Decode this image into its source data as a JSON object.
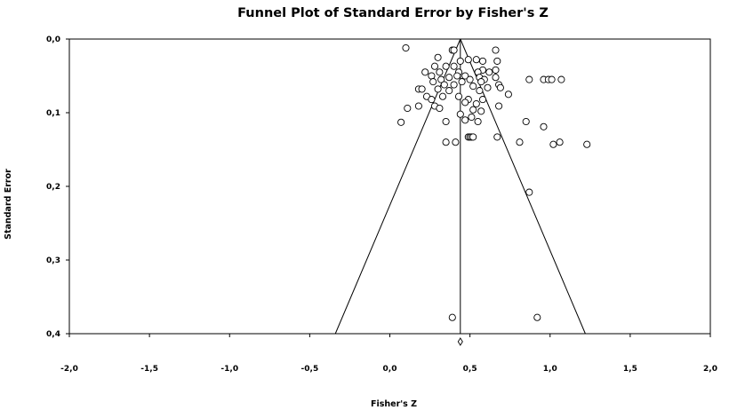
{
  "chart_data": {
    "type": "scatter",
    "title": "Funnel Plot of Standard Error by Fisher's Z",
    "xlabel": "Fisher's Z",
    "ylabel": "Standard Error",
    "xlim": [
      -2.0,
      2.0
    ],
    "ylim": [
      0.0,
      0.4
    ],
    "y_axis_inverted": true,
    "grid": false,
    "legend": "none",
    "x_ticks": [
      "-2,0",
      "-1,5",
      "-1,0",
      "-0,5",
      "0,0",
      "0,5",
      "1,0",
      "1,5",
      "2,0"
    ],
    "x_tick_values": [
      -2.0,
      -1.5,
      -1.0,
      -0.5,
      0.0,
      0.5,
      1.0,
      1.5,
      2.0
    ],
    "y_ticks": [
      "0,0",
      "0,1",
      "0,2",
      "0,3",
      "0,4"
    ],
    "y_tick_values": [
      0.0,
      0.1,
      0.2,
      0.3,
      0.4
    ],
    "combined_effect": 0.44,
    "funnel": {
      "apex": [
        0.44,
        0.0
      ],
      "base_left": [
        -0.34,
        0.4
      ],
      "base_right": [
        1.22,
        0.4
      ]
    },
    "combined_marker": {
      "x": 0.44,
      "symbol": "diamond"
    },
    "points": [
      [
        0.1,
        0.012
      ],
      [
        0.39,
        0.015
      ],
      [
        0.4,
        0.015
      ],
      [
        0.66,
        0.015
      ],
      [
        0.3,
        0.025
      ],
      [
        0.49,
        0.028
      ],
      [
        0.54,
        0.028
      ],
      [
        0.44,
        0.03
      ],
      [
        0.58,
        0.03
      ],
      [
        0.67,
        0.03
      ],
      [
        0.28,
        0.037
      ],
      [
        0.35,
        0.037
      ],
      [
        0.4,
        0.037
      ],
      [
        0.58,
        0.042
      ],
      [
        0.66,
        0.042
      ],
      [
        0.22,
        0.045
      ],
      [
        0.31,
        0.045
      ],
      [
        0.43,
        0.045
      ],
      [
        0.55,
        0.045
      ],
      [
        0.62,
        0.045
      ],
      [
        0.26,
        0.05
      ],
      [
        0.42,
        0.05
      ],
      [
        0.47,
        0.05
      ],
      [
        0.37,
        0.052
      ],
      [
        0.56,
        0.052
      ],
      [
        0.66,
        0.052
      ],
      [
        0.32,
        0.055
      ],
      [
        0.5,
        0.055
      ],
      [
        0.59,
        0.055
      ],
      [
        0.87,
        0.055
      ],
      [
        0.96,
        0.055
      ],
      [
        0.99,
        0.055
      ],
      [
        1.01,
        0.055
      ],
      [
        1.07,
        0.055
      ],
      [
        0.27,
        0.058
      ],
      [
        0.45,
        0.058
      ],
      [
        0.57,
        0.058
      ],
      [
        0.68,
        0.062
      ],
      [
        0.34,
        0.062
      ],
      [
        0.4,
        0.062
      ],
      [
        0.52,
        0.064
      ],
      [
        0.61,
        0.066
      ],
      [
        0.69,
        0.066
      ],
      [
        0.18,
        0.068
      ],
      [
        0.2,
        0.068
      ],
      [
        0.3,
        0.068
      ],
      [
        0.37,
        0.07
      ],
      [
        0.56,
        0.07
      ],
      [
        0.74,
        0.075
      ],
      [
        0.23,
        0.078
      ],
      [
        0.33,
        0.078
      ],
      [
        0.43,
        0.078
      ],
      [
        0.26,
        0.082
      ],
      [
        0.49,
        0.082
      ],
      [
        0.58,
        0.082
      ],
      [
        0.47,
        0.086
      ],
      [
        0.54,
        0.088
      ],
      [
        0.18,
        0.091
      ],
      [
        0.28,
        0.091
      ],
      [
        0.68,
        0.091
      ],
      [
        0.11,
        0.094
      ],
      [
        0.31,
        0.094
      ],
      [
        0.52,
        0.096
      ],
      [
        0.57,
        0.098
      ],
      [
        0.44,
        0.102
      ],
      [
        0.51,
        0.106
      ],
      [
        0.47,
        0.11
      ],
      [
        0.35,
        0.112
      ],
      [
        0.55,
        0.112
      ],
      [
        0.85,
        0.112
      ],
      [
        0.07,
        0.113
      ],
      [
        0.96,
        0.119
      ],
      [
        0.49,
        0.133
      ],
      [
        0.5,
        0.133
      ],
      [
        0.51,
        0.133
      ],
      [
        0.52,
        0.133
      ],
      [
        0.67,
        0.133
      ],
      [
        0.35,
        0.14
      ],
      [
        0.41,
        0.14
      ],
      [
        0.81,
        0.14
      ],
      [
        1.06,
        0.14
      ],
      [
        1.02,
        0.143
      ],
      [
        1.23,
        0.143
      ],
      [
        0.87,
        0.208
      ],
      [
        0.39,
        0.378
      ],
      [
        0.92,
        0.378
      ]
    ]
  }
}
